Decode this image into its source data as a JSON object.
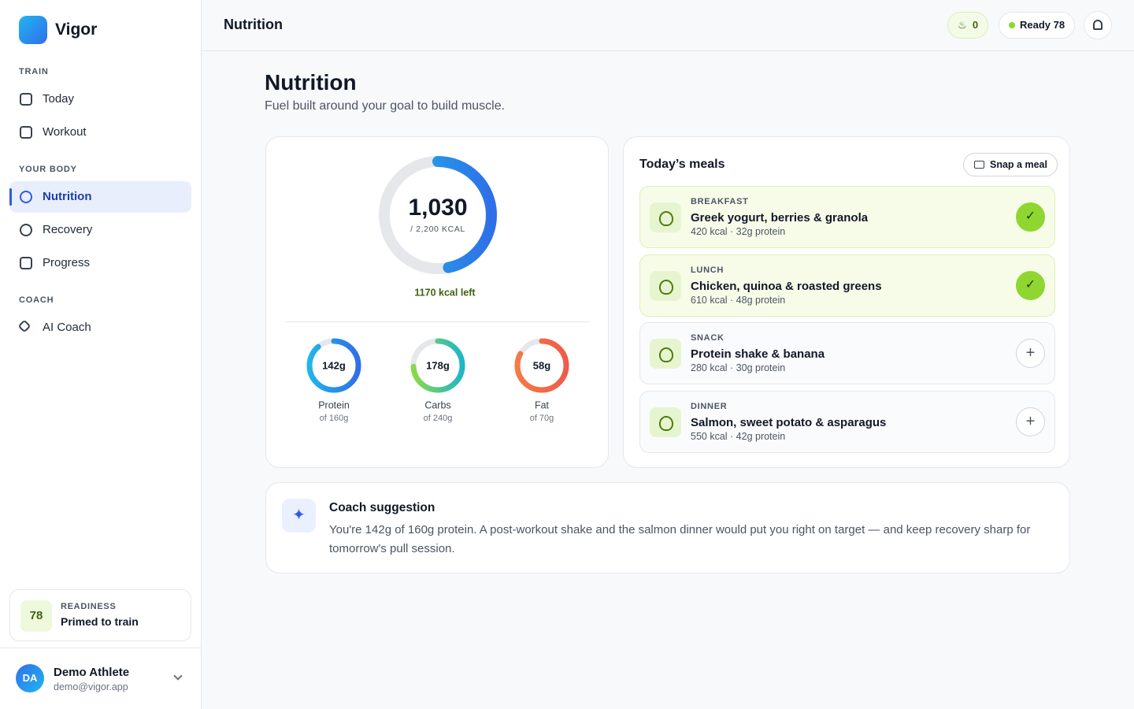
{
  "sidebar": {
    "brand": "Vigor",
    "sections": [
      {
        "title": "TRAIN",
        "items": [
          "Today",
          "Workout"
        ]
      },
      {
        "title": "YOUR BODY",
        "items": [
          "Nutrition",
          "Recovery",
          "Progress"
        ]
      },
      {
        "title": "COACH",
        "items": [
          "AI Coach"
        ]
      }
    ],
    "readiness": {
      "score": 78,
      "label": "READINESS",
      "status": "Primed to train"
    },
    "user": {
      "initials": "DA",
      "name": "Demo Athlete",
      "email": "demo@vigor.app"
    }
  },
  "header": {
    "title": "Nutrition",
    "streak": 0,
    "ready": "Ready 78"
  },
  "page": {
    "title": "Nutrition",
    "subtitle": "Fuel built around your goal to build muscle."
  },
  "calories": {
    "value": 1030,
    "label": "1,030",
    "goal": 2200,
    "goal_label": "/ 2,200 KCAL",
    "left": "1170 kcal left"
  },
  "macros": [
    {
      "name": "Protein",
      "value": 142,
      "label": "142g",
      "goal": 160,
      "goal_label": "of 160g"
    },
    {
      "name": "Carbs",
      "value": 178,
      "label": "178g",
      "goal": 240,
      "goal_label": "of 240g"
    },
    {
      "name": "Fat",
      "value": 58,
      "label": "58g",
      "goal": 70,
      "goal_label": "of 70g"
    }
  ],
  "meals": {
    "title": "Today’s meals",
    "action": "Snap a meal",
    "items": [
      {
        "type": "BREAKFAST",
        "name": "Greek yogurt, berries & granola",
        "details": "420 kcal · 32g protein",
        "done": true
      },
      {
        "type": "LUNCH",
        "name": "Chicken, quinoa & roasted greens",
        "details": "610 kcal · 48g protein",
        "done": true
      },
      {
        "type": "SNACK",
        "name": "Protein shake & banana",
        "details": "280 kcal · 30g protein",
        "done": false
      },
      {
        "type": "DINNER",
        "name": "Salmon, sweet potato & asparagus",
        "details": "550 kcal · 42g protein",
        "done": false
      }
    ]
  },
  "coach": {
    "title": "Coach suggestion",
    "text": "You're 142g of 160g protein. A post-workout shake and the salmon dinner would put you right on target — and keep recovery sharp for tomorrow's pull session."
  }
}
